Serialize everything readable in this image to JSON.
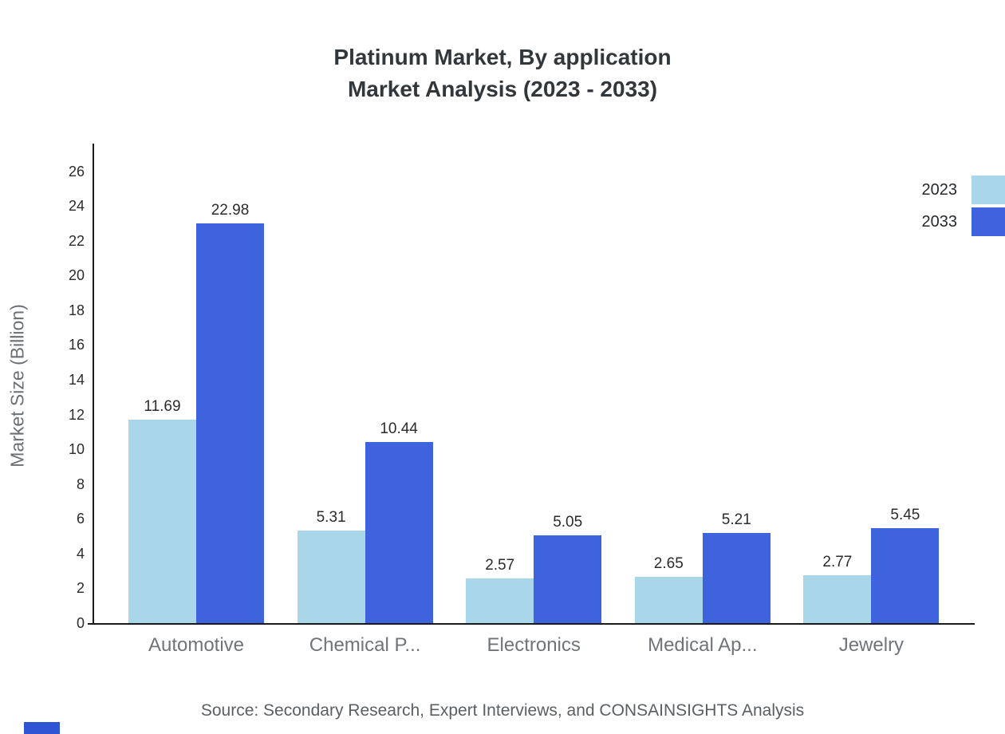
{
  "title": {
    "line1": "Platinum Market, By application",
    "line2": "Market Analysis (2023 - 2033)"
  },
  "source": "Source: Secondary Research, Expert Interviews, and CONSAINSIGHTS Analysis",
  "chart_data": {
    "type": "bar",
    "title": "Platinum Market, By application Market Analysis (2023 - 2033)",
    "categories": [
      "Automotive",
      "Chemical P...",
      "Electronics",
      "Medical Ap...",
      "Jewelry"
    ],
    "series": [
      {
        "name": "2023",
        "color": "#a9d6e8",
        "values": [
          11.69,
          5.31,
          2.57,
          2.65,
          2.77
        ]
      },
      {
        "name": "2033",
        "color": "#3e63dd",
        "values": [
          22.98,
          10.44,
          5.05,
          5.21,
          5.45
        ]
      }
    ],
    "xlabel": "",
    "ylabel": "Market Size (Billion)",
    "ylim": [
      0,
      27.5
    ],
    "yticks": [
      0,
      2,
      4,
      6,
      8,
      10,
      12,
      14,
      16,
      18,
      20,
      22,
      24,
      26
    ],
    "grid": false,
    "legend_position": "top-right",
    "value_labels": true
  }
}
